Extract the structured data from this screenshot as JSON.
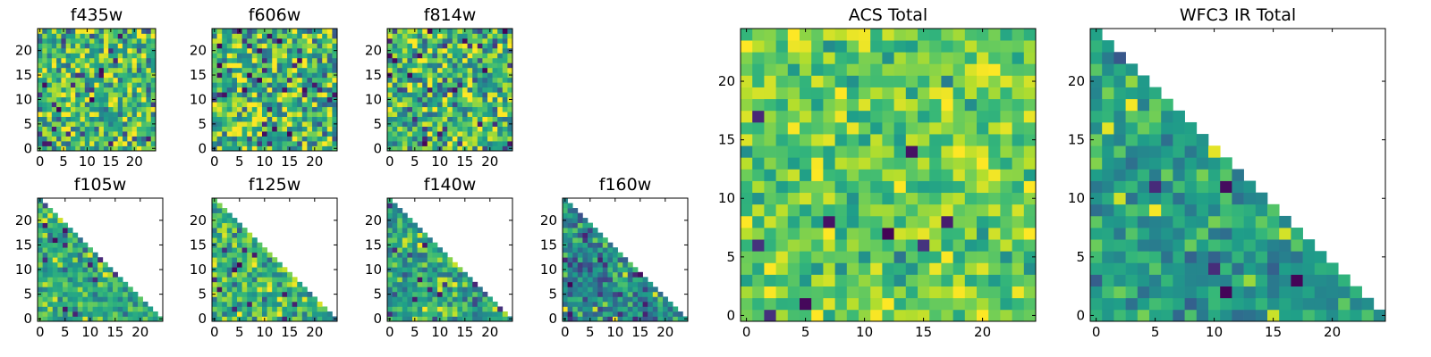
{
  "chart_data": [
    {
      "type": "heatmap",
      "title": "f435w",
      "grid": 25,
      "xticks": [
        0,
        5,
        10,
        15,
        20
      ],
      "yticks": [
        0,
        5,
        10,
        15,
        20
      ],
      "xlim": [
        0,
        25
      ],
      "ylim": [
        0,
        25
      ],
      "coverage": "full",
      "colormap": "viridis",
      "seed": 11,
      "mean": 0.68,
      "spread": 0.26
    },
    {
      "type": "heatmap",
      "title": "f606w",
      "grid": 25,
      "xticks": [
        0,
        5,
        10,
        15,
        20
      ],
      "yticks": [
        0,
        5,
        10,
        15,
        20
      ],
      "xlim": [
        0,
        25
      ],
      "ylim": [
        0,
        25
      ],
      "coverage": "full",
      "colormap": "viridis",
      "seed": 23,
      "mean": 0.66,
      "spread": 0.28
    },
    {
      "type": "heatmap",
      "title": "f814w",
      "grid": 25,
      "xticks": [
        0,
        5,
        10,
        15,
        20
      ],
      "yticks": [
        0,
        5,
        10,
        15,
        20
      ],
      "xlim": [
        0,
        25
      ],
      "ylim": [
        0,
        25
      ],
      "coverage": "full",
      "colormap": "viridis",
      "seed": 37,
      "mean": 0.66,
      "spread": 0.28
    },
    {
      "type": "heatmap",
      "title": "f105w",
      "grid": 25,
      "xticks": [
        0,
        5,
        10,
        15,
        20
      ],
      "yticks": [
        0,
        5,
        10,
        15,
        20
      ],
      "xlim": [
        0,
        25
      ],
      "ylim": [
        0,
        25
      ],
      "coverage": "triangle",
      "colormap": "viridis",
      "seed": 41,
      "mean": 0.62,
      "spread": 0.18
    },
    {
      "type": "heatmap",
      "title": "f125w",
      "grid": 25,
      "xticks": [
        0,
        5,
        10,
        15,
        20
      ],
      "yticks": [
        0,
        5,
        10,
        15,
        20
      ],
      "xlim": [
        0,
        25
      ],
      "ylim": [
        0,
        25
      ],
      "coverage": "triangle",
      "colormap": "viridis",
      "seed": 53,
      "mean": 0.66,
      "spread": 0.2
    },
    {
      "type": "heatmap",
      "title": "f140w",
      "grid": 25,
      "xticks": [
        0,
        5,
        10,
        15,
        20
      ],
      "yticks": [
        0,
        5,
        10,
        15,
        20
      ],
      "xlim": [
        0,
        25
      ],
      "ylim": [
        0,
        25
      ],
      "coverage": "triangle",
      "colormap": "viridis",
      "seed": 67,
      "mean": 0.58,
      "spread": 0.2
    },
    {
      "type": "heatmap",
      "title": "f160w",
      "grid": 25,
      "xticks": [
        0,
        5,
        10,
        15,
        20
      ],
      "yticks": [
        0,
        5,
        10,
        15,
        20
      ],
      "xlim": [
        0,
        25
      ],
      "ylim": [
        0,
        25
      ],
      "coverage": "triangle",
      "colormap": "viridis",
      "seed": 79,
      "mean": 0.46,
      "spread": 0.2
    },
    {
      "type": "heatmap",
      "title": "ACS Total",
      "grid": 25,
      "xticks": [
        0,
        5,
        10,
        15,
        20
      ],
      "yticks": [
        0,
        5,
        10,
        15,
        20
      ],
      "xlim": [
        0,
        25
      ],
      "ylim": [
        0,
        25
      ],
      "coverage": "full",
      "colormap": "viridis",
      "seed": 97,
      "mean": 0.76,
      "spread": 0.16
    },
    {
      "type": "heatmap",
      "title": "WFC3 IR Total",
      "grid": 25,
      "xticks": [
        0,
        5,
        10,
        15,
        20
      ],
      "yticks": [
        0,
        5,
        10,
        15,
        20
      ],
      "xlim": [
        0,
        25
      ],
      "ylim": [
        0,
        25
      ],
      "coverage": "triangle",
      "colormap": "viridis",
      "seed": 113,
      "mean": 0.56,
      "spread": 0.14
    }
  ]
}
